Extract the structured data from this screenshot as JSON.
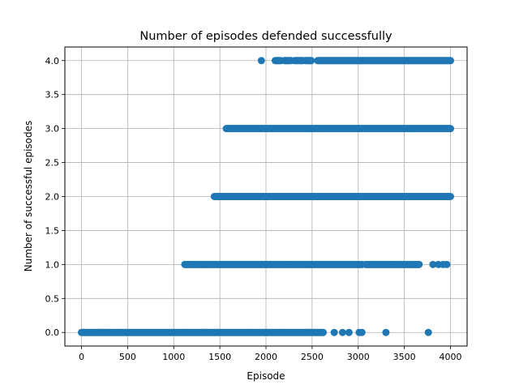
{
  "chart_data": {
    "type": "scatter",
    "title": "Number of episodes defended successfully",
    "xlabel": "Episode",
    "ylabel": "Number of successful episodes",
    "xlim": [
      -180,
      4180
    ],
    "ylim": [
      -0.2,
      4.2
    ],
    "xticks": [
      0,
      500,
      1000,
      1500,
      2000,
      2500,
      3000,
      3500,
      4000
    ],
    "xtick_labels": [
      "0",
      "500",
      "1000",
      "1500",
      "2000",
      "2500",
      "3000",
      "3500",
      "4000"
    ],
    "yticks": [
      0.0,
      0.5,
      1.0,
      1.5,
      2.0,
      2.5,
      3.0,
      3.5,
      4.0
    ],
    "ytick_labels": [
      "0.0",
      "0.5",
      "1.0",
      "1.5",
      "2.0",
      "2.5",
      "3.0",
      "3.5",
      "4.0"
    ],
    "grid": true,
    "marker_color": "#1f77b4",
    "series": [
      {
        "points": [
          {
            "y": 0,
            "x_start": 0,
            "x_end": 2620
          },
          {
            "y": 0,
            "x": 2740
          },
          {
            "y": 0,
            "x": 2830
          },
          {
            "y": 0,
            "x": 2900
          },
          {
            "y": 0,
            "x": 3010
          },
          {
            "y": 0,
            "x": 3040
          },
          {
            "y": 0,
            "x": 3300
          },
          {
            "y": 0,
            "x": 3760
          },
          {
            "y": 1,
            "x_start": 1120,
            "x_end": 3040
          },
          {
            "y": 1,
            "x_start": 3080,
            "x_end": 3660
          },
          {
            "y": 1,
            "x": 3810
          },
          {
            "y": 1,
            "x": 3870
          },
          {
            "y": 1,
            "x": 3920
          },
          {
            "y": 1,
            "x": 3960
          },
          {
            "y": 2,
            "x_start": 1440,
            "x_end": 4000
          },
          {
            "y": 3,
            "x_start": 1570,
            "x_end": 4000
          },
          {
            "y": 4,
            "x": 1950
          },
          {
            "y": 4,
            "x_start": 2100,
            "x_end": 2160
          },
          {
            "y": 4,
            "x_start": 2200,
            "x_end": 2270
          },
          {
            "y": 4,
            "x_start": 2310,
            "x_end": 2400
          },
          {
            "y": 4,
            "x_start": 2430,
            "x_end": 2490
          },
          {
            "y": 4,
            "x_start": 2560,
            "x_end": 4000
          }
        ]
      }
    ]
  }
}
